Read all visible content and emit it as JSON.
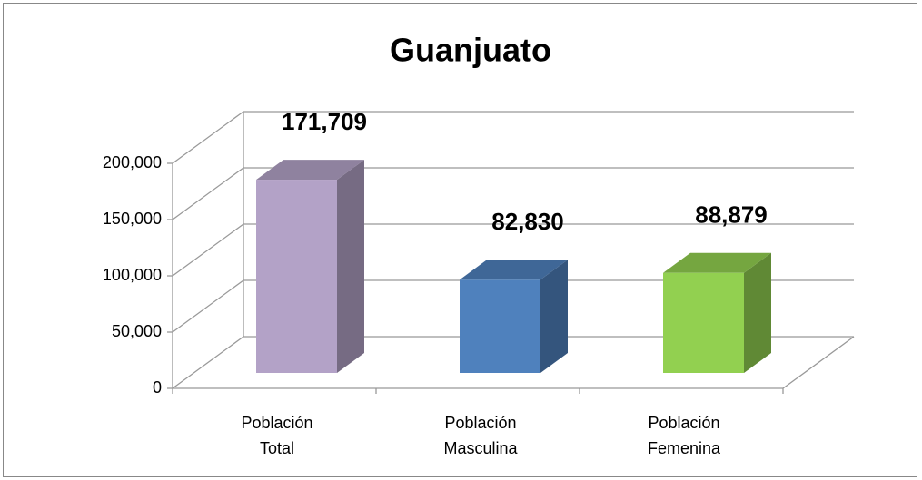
{
  "chart_data": {
    "type": "bar3d",
    "title": "Guanjuato",
    "categories": [
      "Población Total",
      "Población Masculina",
      "Población Femenina"
    ],
    "values": [
      171709,
      82830,
      88879
    ],
    "value_labels": [
      "171,709",
      "82,830",
      "88,879"
    ],
    "colors": [
      "#b3a2c7",
      "#4f81bd",
      "#92d050"
    ],
    "ylim": [
      0,
      200000
    ],
    "yticks": [
      0,
      {
        "value": 50000,
        "label": "50,000"
      },
      {
        "value": 100000,
        "label": "100,000"
      },
      {
        "value": 150000,
        "label": "150,000"
      },
      {
        "value": 200000,
        "label": "200,000"
      }
    ],
    "grid": true
  }
}
